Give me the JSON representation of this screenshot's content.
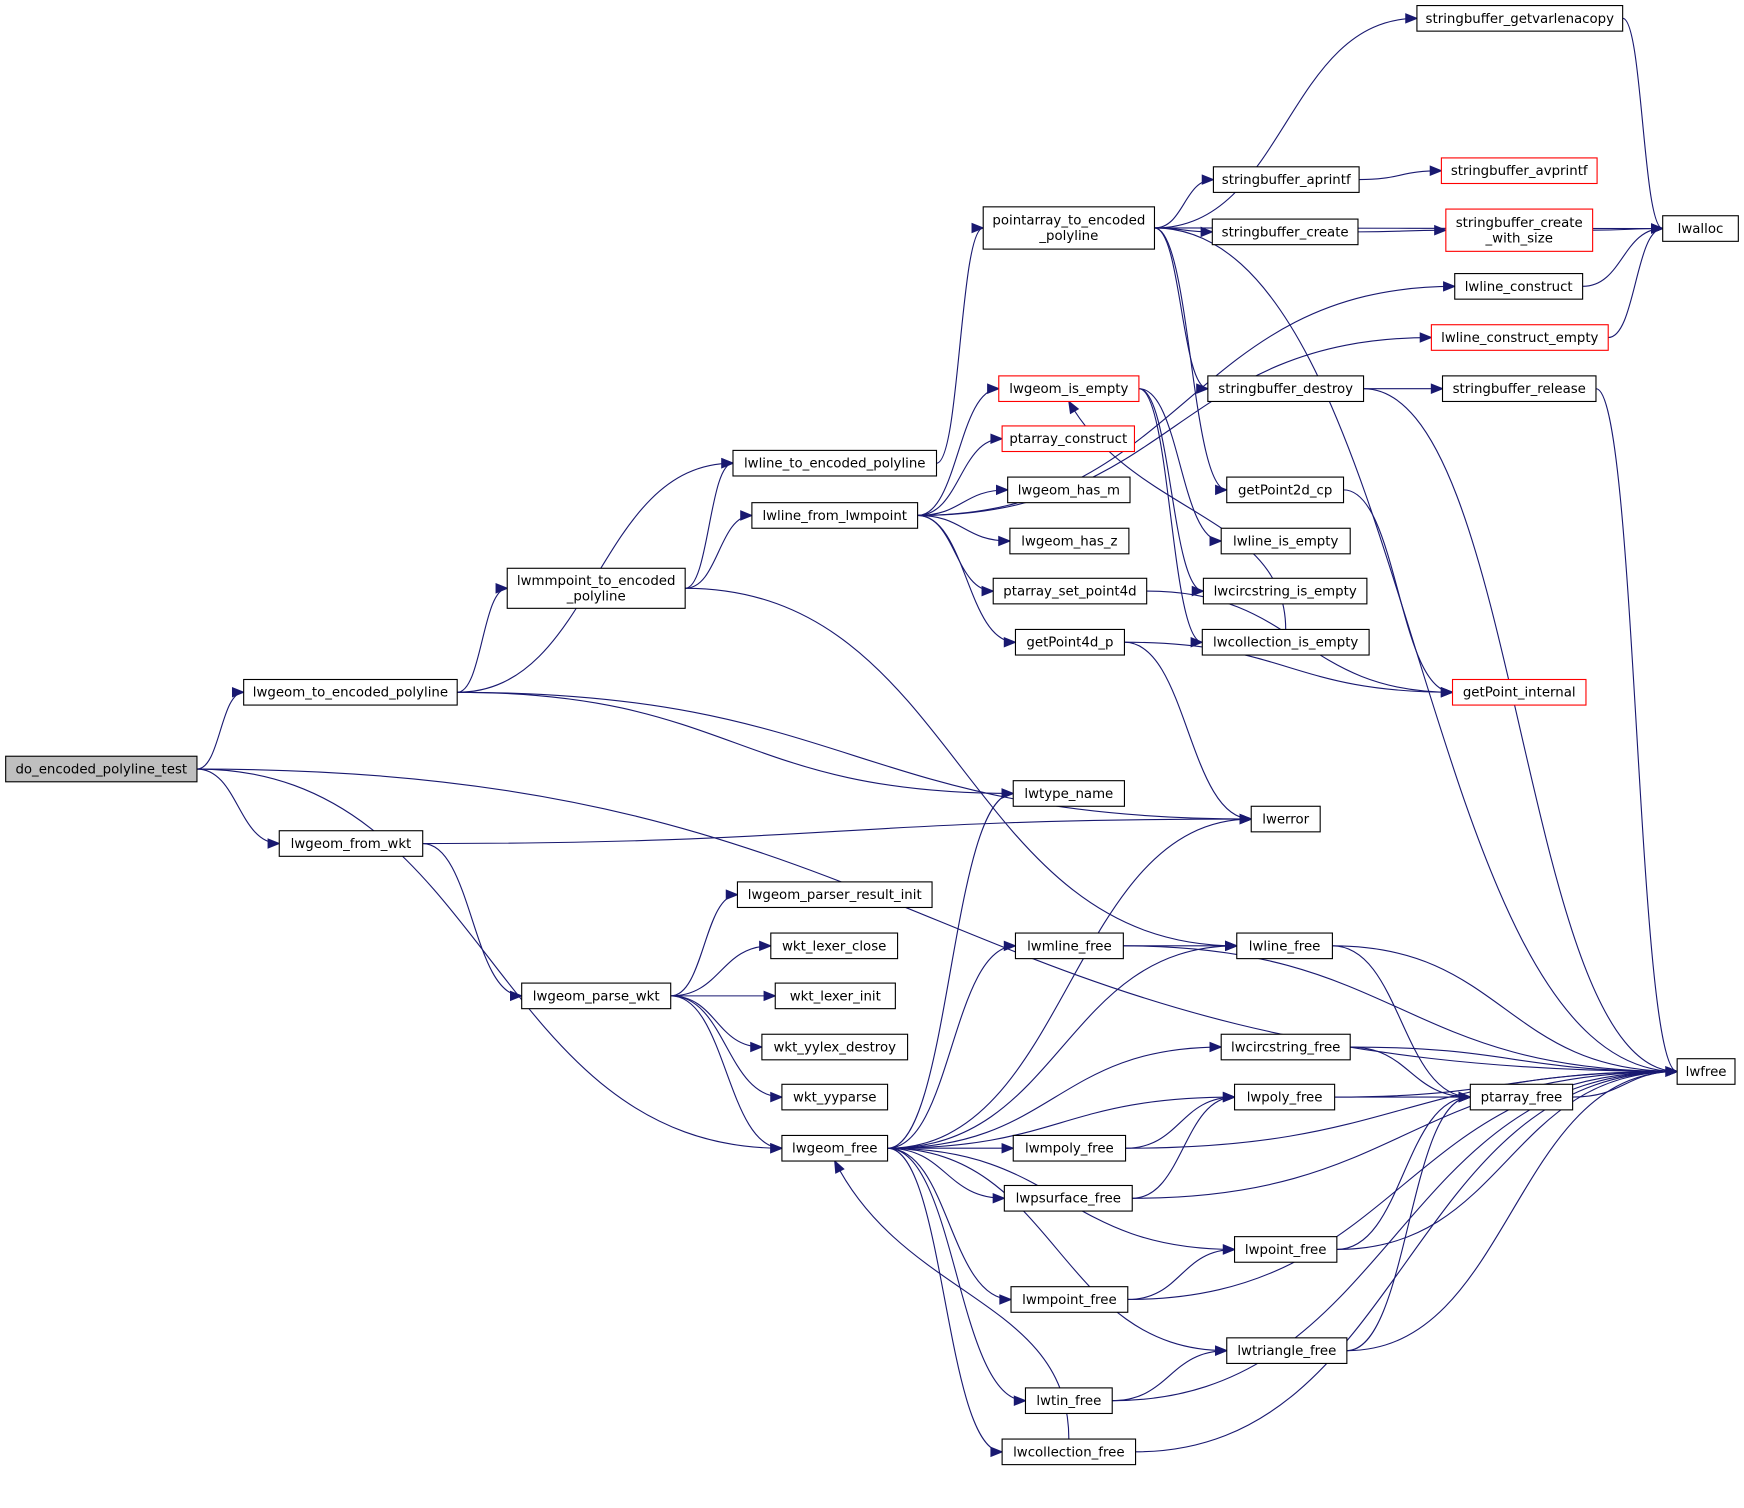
{
  "colors": {
    "edge": "#191970",
    "node_border": "#000000",
    "highlight_border": "#ff0000",
    "root_fill": "#bfbfbf",
    "node_fill": "#ffffff"
  },
  "nodes": [
    {
      "id": "do_encoded_polyline_test",
      "lines": [
        "do_encoded_polyline_test"
      ],
      "root": true
    },
    {
      "id": "lwgeom_to_encoded_polyline",
      "lines": [
        "lwgeom_to_encoded_polyline"
      ]
    },
    {
      "id": "lwgeom_from_wkt",
      "lines": [
        "lwgeom_from_wkt"
      ]
    },
    {
      "id": "lwmmpoint_to_encoded_polyline",
      "lines": [
        "lwmmpoint_to_encoded",
        "_polyline"
      ]
    },
    {
      "id": "lwline_to_encoded_polyline",
      "lines": [
        "lwline_to_encoded_polyline"
      ]
    },
    {
      "id": "lwline_from_lwmpoint",
      "lines": [
        "lwline_from_lwmpoint"
      ]
    },
    {
      "id": "pointarray_to_encoded_polyline",
      "lines": [
        "pointarray_to_encoded",
        "_polyline"
      ]
    },
    {
      "id": "lwgeom_parse_wkt",
      "lines": [
        "lwgeom_parse_wkt"
      ]
    },
    {
      "id": "lwgeom_parser_result_init",
      "lines": [
        "lwgeom_parser_result_init"
      ]
    },
    {
      "id": "wkt_lexer_close",
      "lines": [
        "wkt_lexer_close"
      ]
    },
    {
      "id": "wkt_lexer_init",
      "lines": [
        "wkt_lexer_init"
      ]
    },
    {
      "id": "wkt_yylex_destroy",
      "lines": [
        "wkt_yylex_destroy"
      ]
    },
    {
      "id": "wkt_yyparse",
      "lines": [
        "wkt_yyparse"
      ]
    },
    {
      "id": "lwgeom_free",
      "lines": [
        "lwgeom_free"
      ]
    },
    {
      "id": "lwgeom_is_empty",
      "lines": [
        "lwgeom_is_empty"
      ],
      "red": true
    },
    {
      "id": "ptarray_construct",
      "lines": [
        "ptarray_construct"
      ],
      "red": true
    },
    {
      "id": "lwgeom_has_m",
      "lines": [
        "lwgeom_has_m"
      ]
    },
    {
      "id": "lwgeom_has_z",
      "lines": [
        "lwgeom_has_z"
      ]
    },
    {
      "id": "ptarray_set_point4d",
      "lines": [
        "ptarray_set_point4d"
      ]
    },
    {
      "id": "getPoint4d_p",
      "lines": [
        "getPoint4d_p"
      ]
    },
    {
      "id": "lwtype_name",
      "lines": [
        "lwtype_name"
      ]
    },
    {
      "id": "lwmline_free",
      "lines": [
        "lwmline_free"
      ]
    },
    {
      "id": "lwmpoly_free",
      "lines": [
        "lwmpoly_free"
      ]
    },
    {
      "id": "lwpsurface_free",
      "lines": [
        "lwpsurface_free"
      ]
    },
    {
      "id": "lwmpoint_free",
      "lines": [
        "lwmpoint_free"
      ]
    },
    {
      "id": "lwtin_free",
      "lines": [
        "lwtin_free"
      ]
    },
    {
      "id": "lwcollection_free",
      "lines": [
        "lwcollection_free"
      ]
    },
    {
      "id": "stringbuffer_getvarlenacopy",
      "lines": [
        "stringbuffer_getvarlenacopy"
      ]
    },
    {
      "id": "stringbuffer_aprintf",
      "lines": [
        "stringbuffer_aprintf"
      ]
    },
    {
      "id": "stringbuffer_create",
      "lines": [
        "stringbuffer_create"
      ]
    },
    {
      "id": "stringbuffer_destroy",
      "lines": [
        "stringbuffer_destroy"
      ]
    },
    {
      "id": "getPoint2d_cp",
      "lines": [
        "getPoint2d_cp"
      ]
    },
    {
      "id": "lwline_is_empty",
      "lines": [
        "lwline_is_empty"
      ]
    },
    {
      "id": "lwcircstring_is_empty",
      "lines": [
        "lwcircstring_is_empty"
      ]
    },
    {
      "id": "lwcollection_is_empty",
      "lines": [
        "lwcollection_is_empty"
      ]
    },
    {
      "id": "lwerror",
      "lines": [
        "lwerror"
      ]
    },
    {
      "id": "lwline_free",
      "lines": [
        "lwline_free"
      ]
    },
    {
      "id": "lwcircstring_free",
      "lines": [
        "lwcircstring_free"
      ]
    },
    {
      "id": "lwpoly_free",
      "lines": [
        "lwpoly_free"
      ]
    },
    {
      "id": "lwpoint_free",
      "lines": [
        "lwpoint_free"
      ]
    },
    {
      "id": "lwtriangle_free",
      "lines": [
        "lwtriangle_free"
      ]
    },
    {
      "id": "stringbuffer_avprintf",
      "lines": [
        "stringbuffer_avprintf"
      ],
      "red": true
    },
    {
      "id": "stringbuffer_create_with_size",
      "lines": [
        "stringbuffer_create",
        "_with_size"
      ],
      "red": true
    },
    {
      "id": "lwline_construct",
      "lines": [
        "lwline_construct"
      ]
    },
    {
      "id": "lwline_construct_empty",
      "lines": [
        "lwline_construct_empty"
      ],
      "red": true
    },
    {
      "id": "stringbuffer_release",
      "lines": [
        "stringbuffer_release"
      ]
    },
    {
      "id": "getPoint_internal",
      "lines": [
        "getPoint_internal"
      ],
      "red": true
    },
    {
      "id": "ptarray_free",
      "lines": [
        "ptarray_free"
      ]
    },
    {
      "id": "lwalloc",
      "lines": [
        "lwalloc"
      ]
    },
    {
      "id": "lwfree",
      "lines": [
        "lwfree"
      ]
    }
  ],
  "edges": [
    [
      "do_encoded_polyline_test",
      "lwgeom_to_encoded_polyline"
    ],
    [
      "do_encoded_polyline_test",
      "lwgeom_from_wkt"
    ],
    [
      "do_encoded_polyline_test",
      "lwgeom_free"
    ],
    [
      "do_encoded_polyline_test",
      "lwfree"
    ],
    [
      "lwgeom_to_encoded_polyline",
      "lwline_to_encoded_polyline"
    ],
    [
      "lwgeom_to_encoded_polyline",
      "lwmmpoint_to_encoded_polyline"
    ],
    [
      "lwgeom_to_encoded_polyline",
      "lwtype_name"
    ],
    [
      "lwgeom_to_encoded_polyline",
      "lwerror"
    ],
    [
      "lwgeom_from_wkt",
      "lwerror"
    ],
    [
      "lwgeom_from_wkt",
      "lwgeom_parse_wkt"
    ],
    [
      "lwmmpoint_to_encoded_polyline",
      "lwline_to_encoded_polyline"
    ],
    [
      "lwmmpoint_to_encoded_polyline",
      "lwline_from_lwmpoint"
    ],
    [
      "lwmmpoint_to_encoded_polyline",
      "lwline_free"
    ],
    [
      "lwline_to_encoded_polyline",
      "pointarray_to_encoded_polyline"
    ],
    [
      "lwline_from_lwmpoint",
      "lwgeom_is_empty"
    ],
    [
      "lwline_from_lwmpoint",
      "ptarray_construct"
    ],
    [
      "lwline_from_lwmpoint",
      "lwgeom_has_m"
    ],
    [
      "lwline_from_lwmpoint",
      "lwgeom_has_z"
    ],
    [
      "lwline_from_lwmpoint",
      "ptarray_set_point4d"
    ],
    [
      "lwline_from_lwmpoint",
      "getPoint4d_p"
    ],
    [
      "lwline_from_lwmpoint",
      "lwline_construct"
    ],
    [
      "lwline_from_lwmpoint",
      "lwline_construct_empty"
    ],
    [
      "pointarray_to_encoded_polyline",
      "stringbuffer_getvarlenacopy"
    ],
    [
      "pointarray_to_encoded_polyline",
      "lwalloc"
    ],
    [
      "pointarray_to_encoded_polyline",
      "stringbuffer_aprintf"
    ],
    [
      "pointarray_to_encoded_polyline",
      "stringbuffer_create"
    ],
    [
      "pointarray_to_encoded_polyline",
      "stringbuffer_destroy"
    ],
    [
      "pointarray_to_encoded_polyline",
      "getPoint2d_cp"
    ],
    [
      "pointarray_to_encoded_polyline",
      "lwfree"
    ],
    [
      "lwgeom_parse_wkt",
      "lwgeom_parser_result_init"
    ],
    [
      "lwgeom_parse_wkt",
      "wkt_lexer_close"
    ],
    [
      "lwgeom_parse_wkt",
      "wkt_lexer_init"
    ],
    [
      "lwgeom_parse_wkt",
      "wkt_yylex_destroy"
    ],
    [
      "lwgeom_parse_wkt",
      "wkt_yyparse"
    ],
    [
      "lwgeom_parse_wkt",
      "lwgeom_free"
    ],
    [
      "lwgeom_free",
      "lwtype_name"
    ],
    [
      "lwgeom_free",
      "lwerror"
    ],
    [
      "lwgeom_free",
      "lwmline_free"
    ],
    [
      "lwgeom_free",
      "lwline_free"
    ],
    [
      "lwgeom_free",
      "lwcircstring_free"
    ],
    [
      "lwgeom_free",
      "lwpoly_free"
    ],
    [
      "lwgeom_free",
      "lwmpoly_free"
    ],
    [
      "lwgeom_free",
      "lwpsurface_free"
    ],
    [
      "lwgeom_free",
      "lwpoint_free"
    ],
    [
      "lwgeom_free",
      "lwmpoint_free"
    ],
    [
      "lwgeom_free",
      "lwtriangle_free"
    ],
    [
      "lwgeom_free",
      "lwtin_free"
    ],
    [
      "lwgeom_free",
      "lwcollection_free"
    ],
    [
      "lwgeom_is_empty",
      "lwline_is_empty"
    ],
    [
      "lwgeom_is_empty",
      "lwcircstring_is_empty"
    ],
    [
      "lwgeom_is_empty",
      "lwcollection_is_empty"
    ],
    [
      "lwcollection_is_empty",
      "lwgeom_is_empty"
    ],
    [
      "ptarray_set_point4d",
      "getPoint_internal"
    ],
    [
      "getPoint4d_p",
      "lwerror"
    ],
    [
      "getPoint4d_p",
      "getPoint_internal"
    ],
    [
      "getPoint2d_cp",
      "getPoint_internal"
    ],
    [
      "stringbuffer_aprintf",
      "stringbuffer_avprintf"
    ],
    [
      "stringbuffer_create",
      "stringbuffer_create_with_size"
    ],
    [
      "stringbuffer_create_with_size",
      "lwalloc"
    ],
    [
      "stringbuffer_getvarlenacopy",
      "lwalloc"
    ],
    [
      "lwline_construct",
      "lwalloc"
    ],
    [
      "lwline_construct_empty",
      "lwalloc"
    ],
    [
      "stringbuffer_destroy",
      "stringbuffer_release"
    ],
    [
      "stringbuffer_destroy",
      "lwfree"
    ],
    [
      "stringbuffer_release",
      "lwfree"
    ],
    [
      "lwmline_free",
      "lwline_free"
    ],
    [
      "lwmline_free",
      "lwfree"
    ],
    [
      "lwline_free",
      "ptarray_free"
    ],
    [
      "lwline_free",
      "lwfree"
    ],
    [
      "lwcircstring_free",
      "ptarray_free"
    ],
    [
      "lwcircstring_free",
      "lwfree"
    ],
    [
      "lwpoly_free",
      "ptarray_free"
    ],
    [
      "lwpoly_free",
      "lwfree"
    ],
    [
      "ptarray_free",
      "lwfree"
    ],
    [
      "lwmpoly_free",
      "lwpoly_free"
    ],
    [
      "lwmpoly_free",
      "lwfree"
    ],
    [
      "lwpsurface_free",
      "lwpoly_free"
    ],
    [
      "lwpsurface_free",
      "lwfree"
    ],
    [
      "lwpoint_free",
      "ptarray_free"
    ],
    [
      "lwpoint_free",
      "lwfree"
    ],
    [
      "lwmpoint_free",
      "lwpoint_free"
    ],
    [
      "lwmpoint_free",
      "lwfree"
    ],
    [
      "lwtriangle_free",
      "ptarray_free"
    ],
    [
      "lwtriangle_free",
      "lwfree"
    ],
    [
      "lwtin_free",
      "lwtriangle_free"
    ],
    [
      "lwtin_free",
      "lwfree"
    ],
    [
      "lwcollection_free",
      "lwgeom_free"
    ],
    [
      "lwcollection_free",
      "lwfree"
    ]
  ]
}
